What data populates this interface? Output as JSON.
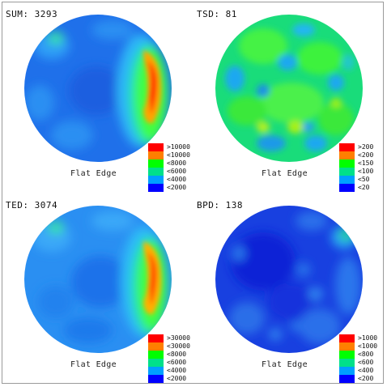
{
  "panels": [
    {
      "id": "sum",
      "title": "SUM: 3293",
      "flat_edge_label": "Flat Edge",
      "legend": [
        {
          "label": ">10000",
          "color": "#ff0000"
        },
        {
          "label": "<10000",
          "color": "#ff7f00"
        },
        {
          "label": "<8000",
          "color": "#00ff00"
        },
        {
          "label": "<6000",
          "color": "#00e08a"
        },
        {
          "label": "<4000",
          "color": "#00a0ff"
        },
        {
          "label": "<2000",
          "color": "#0000ff"
        }
      ]
    },
    {
      "id": "tsd",
      "title": "TSD: 81",
      "flat_edge_label": "Flat Edge",
      "legend": [
        {
          "label": ">200",
          "color": "#ff0000"
        },
        {
          "label": "<200",
          "color": "#ff7f00"
        },
        {
          "label": "<150",
          "color": "#00ff00"
        },
        {
          "label": "<100",
          "color": "#00e08a"
        },
        {
          "label": "<50",
          "color": "#00a0ff"
        },
        {
          "label": "<20",
          "color": "#0000ff"
        }
      ]
    },
    {
      "id": "ted",
      "title": "TED: 3074",
      "flat_edge_label": "Flat Edge",
      "legend": [
        {
          "label": ">30000",
          "color": "#ff0000"
        },
        {
          "label": "<30000",
          "color": "#ff7f00"
        },
        {
          "label": "<8000",
          "color": "#00ff00"
        },
        {
          "label": "<6000",
          "color": "#00e08a"
        },
        {
          "label": "<4000",
          "color": "#00a0ff"
        },
        {
          "label": "<2000",
          "color": "#0000ff"
        }
      ]
    },
    {
      "id": "bpd",
      "title": "BPD: 138",
      "flat_edge_label": "Flat Edge",
      "legend": [
        {
          "label": ">1000",
          "color": "#ff0000"
        },
        {
          "label": "<1000",
          "color": "#ff7f00"
        },
        {
          "label": "<800",
          "color": "#00ff00"
        },
        {
          "label": "<600",
          "color": "#00e08a"
        },
        {
          "label": "<400",
          "color": "#00a0ff"
        },
        {
          "label": "<200",
          "color": "#0000ff"
        }
      ]
    }
  ]
}
